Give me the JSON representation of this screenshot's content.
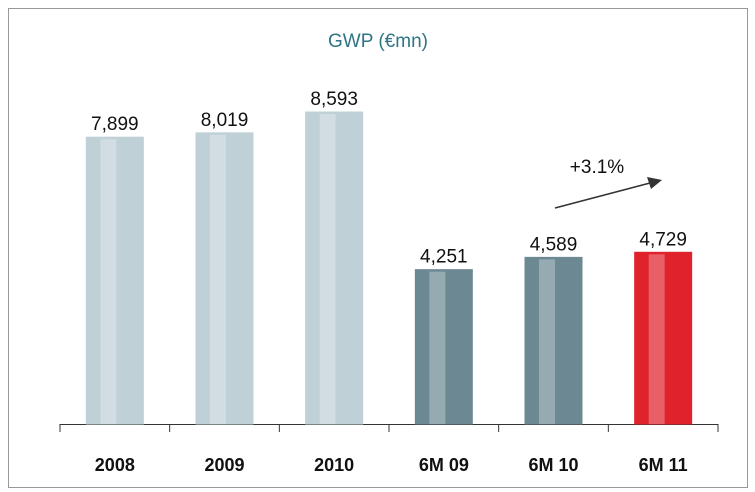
{
  "chart_data": {
    "type": "bar",
    "title": "GWP (€mn)",
    "categories": [
      "2008",
      "2009",
      "2010",
      "6M 09",
      "6M 10",
      "6M 11"
    ],
    "values": [
      7899,
      8019,
      8593,
      4251,
      4589,
      4729
    ],
    "value_labels": [
      "7,899",
      "8,019",
      "8,593",
      "4,251",
      "4,589",
      "4,729"
    ],
    "colors": [
      "#bfd0d7",
      "#bfd0d7",
      "#bfd0d7",
      "#6c8993",
      "#6c8993",
      "#e0222c"
    ],
    "annotation": "+3.1%"
  }
}
